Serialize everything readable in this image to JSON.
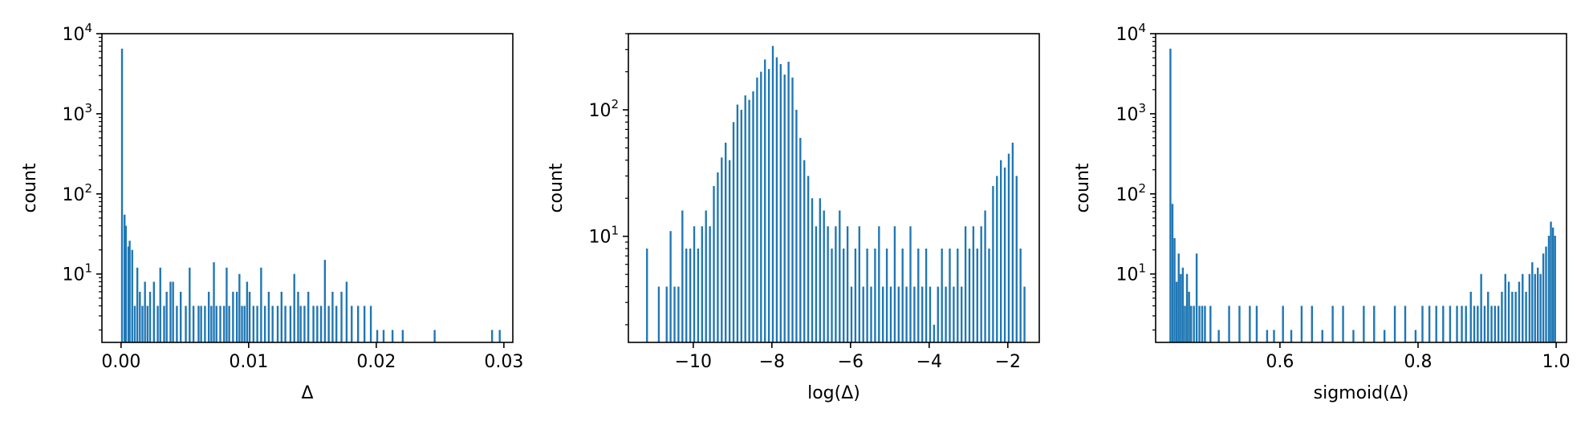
{
  "figure": {
    "bar_color": "#1f77b4",
    "axes_color": "#000000",
    "background": "#ffffff"
  },
  "chart_data": [
    {
      "type": "bar",
      "title": "",
      "xlabel": "Δ",
      "ylabel": "count",
      "xlim": [
        -0.0015,
        0.0307
      ],
      "ylim": [
        1.4,
        10000
      ],
      "y_scale": "log",
      "grid": false,
      "legend": "none",
      "xticks": [
        0.0,
        0.01,
        0.02,
        0.03
      ],
      "xtick_labels": [
        "0.00",
        "0.01",
        "0.02",
        "0.03"
      ],
      "yticks": [
        10,
        100,
        1000,
        10000
      ],
      "ytick_labels": [
        {
          "base": "10",
          "exp": "1"
        },
        {
          "base": "10",
          "exp": "2"
        },
        {
          "base": "10",
          "exp": "3"
        },
        {
          "base": "10",
          "exp": "4"
        }
      ],
      "bin_width": 0.00015,
      "bins": [
        {
          "x": 0.0,
          "y": 6500
        },
        {
          "x": 0.0002,
          "y": 55
        },
        {
          "x": 0.0003,
          "y": 40
        },
        {
          "x": 0.0005,
          "y": 22
        },
        {
          "x": 0.0006,
          "y": 26
        },
        {
          "x": 0.0008,
          "y": 20
        },
        {
          "x": 0.001,
          "y": 4
        },
        {
          "x": 0.0012,
          "y": 12
        },
        {
          "x": 0.0014,
          "y": 6
        },
        {
          "x": 0.0016,
          "y": 4
        },
        {
          "x": 0.0018,
          "y": 8
        },
        {
          "x": 0.002,
          "y": 4
        },
        {
          "x": 0.0022,
          "y": 6
        },
        {
          "x": 0.0025,
          "y": 8
        },
        {
          "x": 0.0028,
          "y": 4
        },
        {
          "x": 0.003,
          "y": 12
        },
        {
          "x": 0.0033,
          "y": 4
        },
        {
          "x": 0.0035,
          "y": 6
        },
        {
          "x": 0.0038,
          "y": 8
        },
        {
          "x": 0.004,
          "y": 8
        },
        {
          "x": 0.0043,
          "y": 4
        },
        {
          "x": 0.0046,
          "y": 6
        },
        {
          "x": 0.005,
          "y": 4
        },
        {
          "x": 0.0053,
          "y": 12
        },
        {
          "x": 0.0056,
          "y": 4
        },
        {
          "x": 0.006,
          "y": 4
        },
        {
          "x": 0.0062,
          "y": 4
        },
        {
          "x": 0.0065,
          "y": 4
        },
        {
          "x": 0.0068,
          "y": 6
        },
        {
          "x": 0.007,
          "y": 4
        },
        {
          "x": 0.0072,
          "y": 14
        },
        {
          "x": 0.0074,
          "y": 4
        },
        {
          "x": 0.0077,
          "y": 4
        },
        {
          "x": 0.008,
          "y": 4
        },
        {
          "x": 0.0082,
          "y": 12
        },
        {
          "x": 0.0084,
          "y": 4
        },
        {
          "x": 0.0087,
          "y": 6
        },
        {
          "x": 0.009,
          "y": 6
        },
        {
          "x": 0.0092,
          "y": 10
        },
        {
          "x": 0.0094,
          "y": 4
        },
        {
          "x": 0.0096,
          "y": 4
        },
        {
          "x": 0.0098,
          "y": 8
        },
        {
          "x": 0.01,
          "y": 6
        },
        {
          "x": 0.0103,
          "y": 4
        },
        {
          "x": 0.0106,
          "y": 4
        },
        {
          "x": 0.0109,
          "y": 12
        },
        {
          "x": 0.0112,
          "y": 4
        },
        {
          "x": 0.0115,
          "y": 6
        },
        {
          "x": 0.0118,
          "y": 4
        },
        {
          "x": 0.0122,
          "y": 4
        },
        {
          "x": 0.0125,
          "y": 6
        },
        {
          "x": 0.0128,
          "y": 4
        },
        {
          "x": 0.0132,
          "y": 4
        },
        {
          "x": 0.0135,
          "y": 10
        },
        {
          "x": 0.0138,
          "y": 6
        },
        {
          "x": 0.014,
          "y": 4
        },
        {
          "x": 0.0143,
          "y": 4
        },
        {
          "x": 0.0146,
          "y": 6
        },
        {
          "x": 0.015,
          "y": 4
        },
        {
          "x": 0.0153,
          "y": 4
        },
        {
          "x": 0.0156,
          "y": 4
        },
        {
          "x": 0.0159,
          "y": 15
        },
        {
          "x": 0.0162,
          "y": 4
        },
        {
          "x": 0.0165,
          "y": 6
        },
        {
          "x": 0.0168,
          "y": 4
        },
        {
          "x": 0.0172,
          "y": 6
        },
        {
          "x": 0.0176,
          "y": 8
        },
        {
          "x": 0.018,
          "y": 4
        },
        {
          "x": 0.0185,
          "y": 4
        },
        {
          "x": 0.019,
          "y": 4
        },
        {
          "x": 0.0195,
          "y": 4
        },
        {
          "x": 0.02,
          "y": 2
        },
        {
          "x": 0.0205,
          "y": 2
        },
        {
          "x": 0.0212,
          "y": 2
        },
        {
          "x": 0.022,
          "y": 2
        },
        {
          "x": 0.0245,
          "y": 2
        },
        {
          "x": 0.029,
          "y": 2
        },
        {
          "x": 0.0296,
          "y": 2
        }
      ]
    },
    {
      "type": "bar",
      "title": "",
      "xlabel": "log(Δ)",
      "ylabel": "count",
      "xlim": [
        -11.65,
        -1.2
      ],
      "ylim": [
        1.45,
        400
      ],
      "y_scale": "log",
      "grid": false,
      "legend": "none",
      "xticks": [
        -10,
        -8,
        -6,
        -4,
        -2
      ],
      "xtick_labels": [
        "−10",
        "−8",
        "−6",
        "−4",
        "−2"
      ],
      "yticks": [
        10,
        100
      ],
      "ytick_labels": [
        {
          "base": "10",
          "exp": "1"
        },
        {
          "base": "10",
          "exp": "2"
        }
      ],
      "bin_width": 0.048,
      "bins": [
        {
          "x": -11.2,
          "y": 8
        },
        {
          "x": -10.9,
          "y": 4
        },
        {
          "x": -10.7,
          "y": 4
        },
        {
          "x": -10.6,
          "y": 11
        },
        {
          "x": -10.5,
          "y": 4
        },
        {
          "x": -10.4,
          "y": 4
        },
        {
          "x": -10.3,
          "y": 16
        },
        {
          "x": -10.2,
          "y": 8
        },
        {
          "x": -10.1,
          "y": 8
        },
        {
          "x": -10.0,
          "y": 12
        },
        {
          "x": -9.9,
          "y": 8
        },
        {
          "x": -9.8,
          "y": 12
        },
        {
          "x": -9.7,
          "y": 16
        },
        {
          "x": -9.6,
          "y": 12
        },
        {
          "x": -9.5,
          "y": 25
        },
        {
          "x": -9.4,
          "y": 32
        },
        {
          "x": -9.3,
          "y": 42
        },
        {
          "x": -9.2,
          "y": 55
        },
        {
          "x": -9.1,
          "y": 40
        },
        {
          "x": -9.0,
          "y": 80
        },
        {
          "x": -8.9,
          "y": 110
        },
        {
          "x": -8.8,
          "y": 100
        },
        {
          "x": -8.7,
          "y": 130
        },
        {
          "x": -8.6,
          "y": 120
        },
        {
          "x": -8.5,
          "y": 140
        },
        {
          "x": -8.4,
          "y": 180
        },
        {
          "x": -8.3,
          "y": 200
        },
        {
          "x": -8.2,
          "y": 250
        },
        {
          "x": -8.1,
          "y": 210
        },
        {
          "x": -8.0,
          "y": 320
        },
        {
          "x": -7.9,
          "y": 260
        },
        {
          "x": -7.8,
          "y": 230
        },
        {
          "x": -7.7,
          "y": 190
        },
        {
          "x": -7.6,
          "y": 240
        },
        {
          "x": -7.5,
          "y": 180
        },
        {
          "x": -7.4,
          "y": 100
        },
        {
          "x": -7.3,
          "y": 60
        },
        {
          "x": -7.2,
          "y": 40
        },
        {
          "x": -7.1,
          "y": 30
        },
        {
          "x": -7.0,
          "y": 20
        },
        {
          "x": -6.9,
          "y": 12
        },
        {
          "x": -6.8,
          "y": 20
        },
        {
          "x": -6.7,
          "y": 16
        },
        {
          "x": -6.6,
          "y": 12
        },
        {
          "x": -6.5,
          "y": 8
        },
        {
          "x": -6.4,
          "y": 12
        },
        {
          "x": -6.3,
          "y": 16
        },
        {
          "x": -6.2,
          "y": 8
        },
        {
          "x": -6.1,
          "y": 12
        },
        {
          "x": -6.0,
          "y": 4
        },
        {
          "x": -5.9,
          "y": 8
        },
        {
          "x": -5.8,
          "y": 12
        },
        {
          "x": -5.7,
          "y": 4
        },
        {
          "x": -5.6,
          "y": 8
        },
        {
          "x": -5.5,
          "y": 4
        },
        {
          "x": -5.4,
          "y": 8
        },
        {
          "x": -5.3,
          "y": 12
        },
        {
          "x": -5.2,
          "y": 4
        },
        {
          "x": -5.1,
          "y": 8
        },
        {
          "x": -5.0,
          "y": 4
        },
        {
          "x": -4.9,
          "y": 12
        },
        {
          "x": -4.8,
          "y": 4
        },
        {
          "x": -4.7,
          "y": 8
        },
        {
          "x": -4.6,
          "y": 4
        },
        {
          "x": -4.5,
          "y": 12
        },
        {
          "x": -4.4,
          "y": 4
        },
        {
          "x": -4.3,
          "y": 8
        },
        {
          "x": -4.2,
          "y": 4
        },
        {
          "x": -4.1,
          "y": 8
        },
        {
          "x": -4.0,
          "y": 4
        },
        {
          "x": -3.9,
          "y": 2
        },
        {
          "x": -3.8,
          "y": 4
        },
        {
          "x": -3.7,
          "y": 8
        },
        {
          "x": -3.6,
          "y": 4
        },
        {
          "x": -3.5,
          "y": 8
        },
        {
          "x": -3.4,
          "y": 4
        },
        {
          "x": -3.3,
          "y": 8
        },
        {
          "x": -3.2,
          "y": 4
        },
        {
          "x": -3.1,
          "y": 12
        },
        {
          "x": -3.0,
          "y": 8
        },
        {
          "x": -2.9,
          "y": 12
        },
        {
          "x": -2.8,
          "y": 8
        },
        {
          "x": -2.7,
          "y": 12
        },
        {
          "x": -2.6,
          "y": 16
        },
        {
          "x": -2.5,
          "y": 8
        },
        {
          "x": -2.4,
          "y": 25
        },
        {
          "x": -2.3,
          "y": 30
        },
        {
          "x": -2.2,
          "y": 40
        },
        {
          "x": -2.1,
          "y": 35
        },
        {
          "x": -2.0,
          "y": 45
        },
        {
          "x": -1.9,
          "y": 55
        },
        {
          "x": -1.8,
          "y": 30
        },
        {
          "x": -1.7,
          "y": 8
        },
        {
          "x": -1.6,
          "y": 4
        }
      ]
    },
    {
      "type": "bar",
      "title": "",
      "xlabel": "sigmoid(Δ)",
      "ylabel": "count",
      "xlim": [
        0.42,
        1.015
      ],
      "ylim": [
        1.4,
        10000
      ],
      "y_scale": "log",
      "grid": false,
      "legend": "none",
      "xticks": [
        0.6,
        0.8,
        1.0
      ],
      "xtick_labels": [
        "0.6",
        "0.8",
        "1.0"
      ],
      "yticks": [
        10,
        100,
        1000,
        10000
      ],
      "ytick_labels": [
        {
          "base": "10",
          "exp": "1"
        },
        {
          "base": "10",
          "exp": "2"
        },
        {
          "base": "10",
          "exp": "3"
        },
        {
          "base": "10",
          "exp": "4"
        }
      ],
      "bin_width": 0.0028,
      "bins": [
        {
          "x": 0.44,
          "y": 6500
        },
        {
          "x": 0.443,
          "y": 75
        },
        {
          "x": 0.446,
          "y": 28
        },
        {
          "x": 0.449,
          "y": 8
        },
        {
          "x": 0.452,
          "y": 18
        },
        {
          "x": 0.455,
          "y": 10
        },
        {
          "x": 0.458,
          "y": 12
        },
        {
          "x": 0.461,
          "y": 4
        },
        {
          "x": 0.464,
          "y": 10
        },
        {
          "x": 0.467,
          "y": 6
        },
        {
          "x": 0.47,
          "y": 4
        },
        {
          "x": 0.474,
          "y": 4
        },
        {
          "x": 0.478,
          "y": 18
        },
        {
          "x": 0.482,
          "y": 4
        },
        {
          "x": 0.486,
          "y": 4
        },
        {
          "x": 0.49,
          "y": 4
        },
        {
          "x": 0.498,
          "y": 4
        },
        {
          "x": 0.51,
          "y": 2
        },
        {
          "x": 0.525,
          "y": 4
        },
        {
          "x": 0.54,
          "y": 4
        },
        {
          "x": 0.555,
          "y": 4
        },
        {
          "x": 0.565,
          "y": 4
        },
        {
          "x": 0.58,
          "y": 2
        },
        {
          "x": 0.59,
          "y": 2
        },
        {
          "x": 0.603,
          "y": 4
        },
        {
          "x": 0.615,
          "y": 2
        },
        {
          "x": 0.63,
          "y": 4
        },
        {
          "x": 0.645,
          "y": 4
        },
        {
          "x": 0.66,
          "y": 2
        },
        {
          "x": 0.675,
          "y": 4
        },
        {
          "x": 0.69,
          "y": 4
        },
        {
          "x": 0.705,
          "y": 2
        },
        {
          "x": 0.72,
          "y": 4
        },
        {
          "x": 0.735,
          "y": 4
        },
        {
          "x": 0.75,
          "y": 2
        },
        {
          "x": 0.765,
          "y": 4
        },
        {
          "x": 0.78,
          "y": 4
        },
        {
          "x": 0.795,
          "y": 2
        },
        {
          "x": 0.805,
          "y": 4
        },
        {
          "x": 0.815,
          "y": 4
        },
        {
          "x": 0.825,
          "y": 4
        },
        {
          "x": 0.835,
          "y": 4
        },
        {
          "x": 0.845,
          "y": 4
        },
        {
          "x": 0.855,
          "y": 4
        },
        {
          "x": 0.862,
          "y": 4
        },
        {
          "x": 0.868,
          "y": 4
        },
        {
          "x": 0.875,
          "y": 6
        },
        {
          "x": 0.88,
          "y": 4
        },
        {
          "x": 0.885,
          "y": 4
        },
        {
          "x": 0.89,
          "y": 10
        },
        {
          "x": 0.895,
          "y": 4
        },
        {
          "x": 0.9,
          "y": 6
        },
        {
          "x": 0.905,
          "y": 4
        },
        {
          "x": 0.91,
          "y": 4
        },
        {
          "x": 0.915,
          "y": 4
        },
        {
          "x": 0.92,
          "y": 6
        },
        {
          "x": 0.925,
          "y": 10
        },
        {
          "x": 0.93,
          "y": 8
        },
        {
          "x": 0.935,
          "y": 6
        },
        {
          "x": 0.94,
          "y": 6
        },
        {
          "x": 0.945,
          "y": 8
        },
        {
          "x": 0.95,
          "y": 10
        },
        {
          "x": 0.955,
          "y": 6
        },
        {
          "x": 0.96,
          "y": 10
        },
        {
          "x": 0.964,
          "y": 14
        },
        {
          "x": 0.968,
          "y": 10
        },
        {
          "x": 0.972,
          "y": 12
        },
        {
          "x": 0.976,
          "y": 10
        },
        {
          "x": 0.98,
          "y": 18
        },
        {
          "x": 0.984,
          "y": 22
        },
        {
          "x": 0.988,
          "y": 30
        },
        {
          "x": 0.991,
          "y": 45
        },
        {
          "x": 0.994,
          "y": 38
        },
        {
          "x": 0.997,
          "y": 30
        }
      ]
    }
  ]
}
